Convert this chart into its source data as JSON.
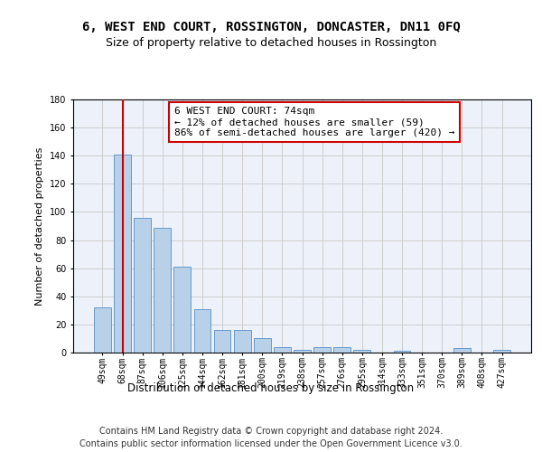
{
  "title1": "6, WEST END COURT, ROSSINGTON, DONCASTER, DN11 0FQ",
  "title2": "Size of property relative to detached houses in Rossington",
  "xlabel": "Distribution of detached houses by size in Rossington",
  "ylabel": "Number of detached properties",
  "categories": [
    "49sqm",
    "68sqm",
    "87sqm",
    "106sqm",
    "125sqm",
    "144sqm",
    "162sqm",
    "181sqm",
    "200sqm",
    "219sqm",
    "238sqm",
    "257sqm",
    "276sqm",
    "295sqm",
    "314sqm",
    "333sqm",
    "351sqm",
    "370sqm",
    "389sqm",
    "408sqm",
    "427sqm"
  ],
  "values": [
    32,
    141,
    96,
    89,
    61,
    31,
    16,
    16,
    10,
    4,
    2,
    4,
    4,
    2,
    0,
    1,
    0,
    0,
    3,
    0,
    2
  ],
  "bar_color": "#b8d0e8",
  "bar_edge_color": "#6699cc",
  "vline_x_index": 1,
  "vline_color": "#cc0000",
  "ylim": [
    0,
    180
  ],
  "yticks": [
    0,
    20,
    40,
    60,
    80,
    100,
    120,
    140,
    160,
    180
  ],
  "annotation_line1": "6 WEST END COURT: 74sqm",
  "annotation_line2": "← 12% of detached houses are smaller (59)",
  "annotation_line3": "86% of semi-detached houses are larger (420) →",
  "annotation_box_color": "#ffffff",
  "annotation_box_edge": "#cc0000",
  "footer1": "Contains HM Land Registry data © Crown copyright and database right 2024.",
  "footer2": "Contains public sector information licensed under the Open Government Licence v3.0.",
  "bg_color": "#edf2fa",
  "title1_fontsize": 10,
  "title2_fontsize": 9,
  "ylabel_fontsize": 8,
  "xlabel_fontsize": 8.5,
  "tick_fontsize": 7,
  "annotation_fontsize": 8,
  "footer_fontsize": 7
}
